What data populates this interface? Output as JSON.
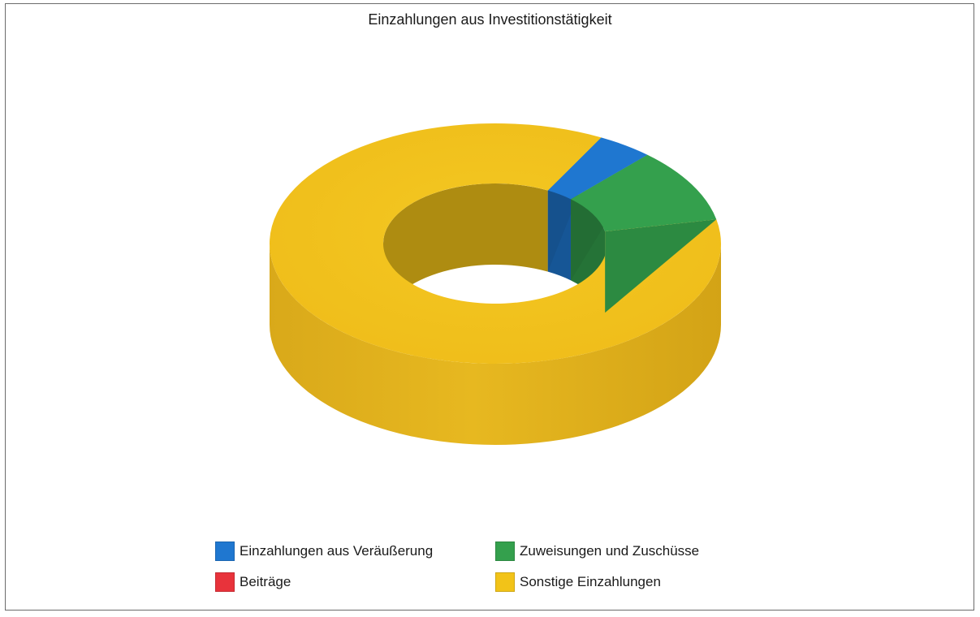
{
  "chart_data": {
    "type": "pie",
    "subtype": "3d-donut",
    "title": "Einzahlungen aus Investitionstätigkeit",
    "categories": [
      "Einzahlungen aus Veräußerung",
      "Zuweisungen und Zuschüsse",
      "Beiträge",
      "Sonstige Einzahlungen"
    ],
    "values": [
      4,
      10,
      0,
      86
    ],
    "unit": "%",
    "colors": [
      "#1f77d0",
      "#34a04d",
      "#e8333b",
      "#f2c318"
    ],
    "legend_position": "bottom"
  }
}
